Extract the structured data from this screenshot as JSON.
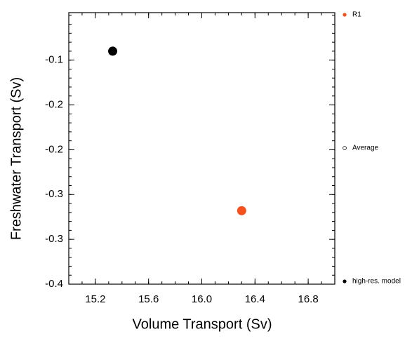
{
  "chart_data": {
    "type": "scatter",
    "x_label": "Volume Transport (Sv)",
    "y_label": "Freshwater Transport (Sv)",
    "xlim": [
      15.0,
      17.0
    ],
    "xticks": [
      {
        "value": 15.2,
        "label": "15.2"
      },
      {
        "value": 15.6,
        "label": "15.6"
      },
      {
        "value": 16.0,
        "label": "16.0"
      },
      {
        "value": 16.4,
        "label": "16.4"
      },
      {
        "value": 16.8,
        "label": "16.8"
      }
    ],
    "ylim": [
      -0.4,
      -0.097
    ],
    "yticks": [
      {
        "value": -0.15,
        "label": "-0.1"
      },
      {
        "value": -0.2,
        "label": "-0.2"
      },
      {
        "value": -0.25,
        "label": "-0.2"
      },
      {
        "value": -0.3,
        "label": "-0.3"
      },
      {
        "value": -0.35,
        "label": "-0.3"
      },
      {
        "value": -0.4,
        "label": "-0.4"
      }
    ],
    "series": [
      {
        "name": "R1",
        "color": "#f4511e",
        "marker": "filled",
        "x": [
          16.3
        ],
        "values": [
          -0.318
        ]
      },
      {
        "name": "Average",
        "color": "#000000",
        "marker": "hollow",
        "x": [],
        "values": []
      },
      {
        "name": "high-res. model",
        "color": "#000000",
        "marker": "filled",
        "x": [
          15.33
        ],
        "values": [
          -0.14
        ]
      }
    ]
  }
}
